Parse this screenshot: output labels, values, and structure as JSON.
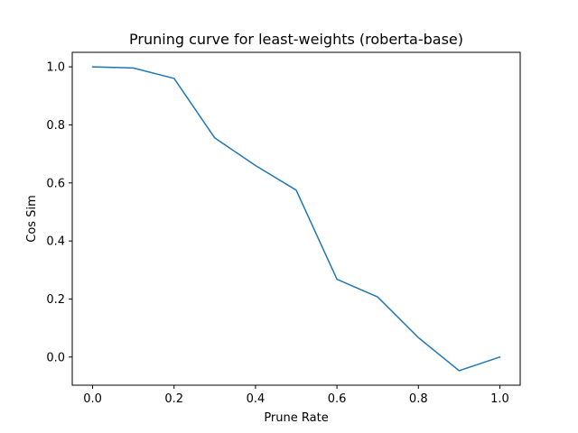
{
  "chart_data": {
    "type": "line",
    "title": "Pruning curve for least-weights (roberta-base)",
    "xlabel": "Prune Rate",
    "ylabel": "Cos Sim",
    "xlim": [
      -0.05,
      1.05
    ],
    "ylim": [
      -0.097,
      1.05
    ],
    "xticks": [
      0.0,
      0.2,
      0.4,
      0.6,
      0.8,
      1.0
    ],
    "xtick_labels": [
      "0.0",
      "0.2",
      "0.4",
      "0.6",
      "0.8",
      "1.0"
    ],
    "yticks": [
      0.0,
      0.2,
      0.4,
      0.6,
      0.8,
      1.0
    ],
    "ytick_labels": [
      "0.0",
      "0.2",
      "0.4",
      "0.6",
      "0.8",
      "1.0"
    ],
    "grid": false,
    "series": [
      {
        "color": "#1f77b4",
        "x": [
          0.0,
          0.1,
          0.2,
          0.3,
          0.4,
          0.5,
          0.6,
          0.7,
          0.8,
          0.9,
          1.0
        ],
        "y": [
          1.0,
          0.996,
          0.96,
          0.755,
          0.66,
          0.575,
          0.268,
          0.207,
          0.067,
          -0.047,
          0.0
        ]
      }
    ]
  }
}
